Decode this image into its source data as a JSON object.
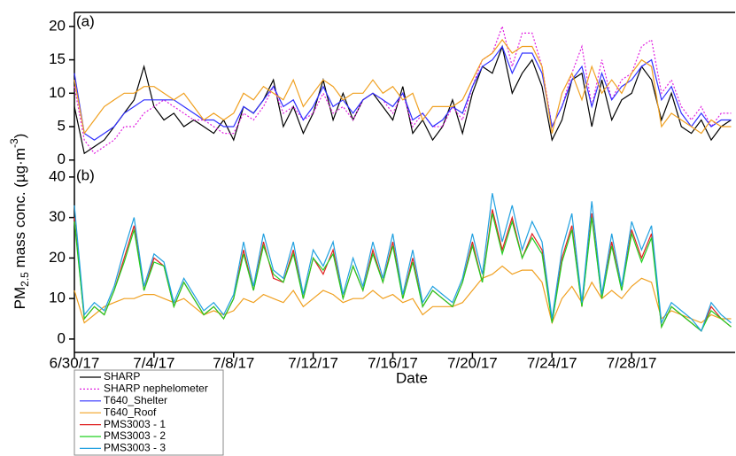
{
  "chart_data": {
    "type": "line",
    "xlabel": "Date",
    "ylabel": {
      "main": "PM",
      "sub": "2.5",
      "rest": " mass conc. (µg·m",
      "sup": "-3",
      "end": ")"
    },
    "x": [
      0,
      0.5,
      1,
      1.5,
      2,
      2.5,
      3,
      3.5,
      4,
      4.5,
      5,
      5.5,
      6,
      6.5,
      7,
      7.5,
      8,
      8.5,
      9,
      9.5,
      10,
      10.5,
      11,
      11.5,
      12,
      12.5,
      13,
      13.5,
      14,
      14.5,
      15,
      15.5,
      16,
      16.5,
      17,
      17.5,
      18,
      18.5,
      19,
      19.5,
      20,
      20.5,
      21,
      21.5,
      22,
      22.5,
      23,
      23.5,
      24,
      24.5,
      25,
      25.5,
      26,
      26.5,
      27,
      27.5,
      28,
      28.5,
      29,
      29.5,
      30,
      30.5,
      31,
      31.5,
      32,
      32.5,
      33
    ],
    "xlim": [
      0,
      33.2
    ],
    "xticks": [
      {
        "value": 0,
        "label": "6/30/17"
      },
      {
        "value": 4,
        "label": "7/4/17"
      },
      {
        "value": 8,
        "label": "7/8/17"
      },
      {
        "value": 12,
        "label": "7/12/17"
      },
      {
        "value": 16,
        "label": "7/16/17"
      },
      {
        "value": 20,
        "label": "7/20/17"
      },
      {
        "value": 24,
        "label": "7/24/17"
      },
      {
        "value": 28,
        "label": "7/28/17"
      }
    ],
    "panels": [
      {
        "label": "(a)",
        "ylim": [
          -0.3,
          22.1
        ],
        "yticks": [
          0,
          5,
          10,
          15,
          20
        ]
      },
      {
        "label": "(b)",
        "ylim": [
          -3.3,
          42.6
        ],
        "yticks": [
          0,
          10,
          20,
          30,
          40
        ]
      }
    ],
    "series": [
      {
        "name": "SHARP",
        "color": "#000000",
        "linestyle": "solid",
        "panels": [
          0
        ],
        "values": [
          8,
          1,
          2,
          3,
          5,
          7,
          9,
          14,
          8,
          6,
          7,
          5,
          6,
          5,
          4,
          6,
          3,
          8,
          7,
          9,
          12,
          5,
          8,
          4,
          7,
          12,
          6,
          10,
          6,
          9,
          10,
          8,
          6,
          11,
          4,
          6,
          3,
          5,
          9,
          4,
          10,
          14,
          13,
          17,
          10,
          13,
          15,
          11,
          3,
          6,
          12,
          13,
          5,
          12,
          6,
          9,
          10,
          14,
          12,
          6,
          10,
          5,
          4,
          6,
          3,
          5,
          6
        ]
      },
      {
        "name": "SHARP nephelometer",
        "color": "#e020e0",
        "linestyle": "dotted",
        "panels": [
          0
        ],
        "values": [
          11,
          3,
          1,
          2,
          3,
          5,
          5,
          7,
          8,
          9,
          8,
          7,
          6,
          6,
          5,
          4,
          4,
          7,
          6,
          8,
          11,
          7,
          8,
          6,
          7,
          10,
          7,
          8,
          6,
          9,
          10,
          9,
          7,
          10,
          5,
          7,
          5,
          5,
          8,
          6,
          11,
          15,
          16,
          20,
          14,
          19,
          19,
          14,
          5,
          8,
          13,
          17,
          8,
          15,
          9,
          12,
          13,
          17,
          18,
          10,
          12,
          8,
          6,
          8,
          5,
          7,
          7
        ]
      },
      {
        "name": "T640_Shelter",
        "color": "#3030ff",
        "linestyle": "solid",
        "panels": [
          0
        ],
        "values": [
          13,
          4,
          3,
          4,
          5,
          7,
          8,
          9,
          9,
          9,
          9,
          8,
          7,
          6,
          6,
          5,
          5,
          8,
          7,
          9,
          11,
          8,
          9,
          6,
          8,
          11,
          8,
          9,
          7,
          9,
          10,
          9,
          8,
          10,
          6,
          7,
          5,
          6,
          8,
          7,
          11,
          14,
          15,
          17,
          13,
          16,
          16,
          13,
          5,
          8,
          12,
          14,
          8,
          13,
          9,
          11,
          12,
          14,
          15,
          9,
          11,
          7,
          5,
          7,
          5,
          6,
          6
        ]
      },
      {
        "name": "T640_Roof",
        "color": "#f0a020",
        "linestyle": "solid",
        "panels": [
          0,
          1
        ],
        "values": [
          12,
          4,
          6,
          8,
          9,
          10,
          10,
          11,
          11,
          10,
          9,
          10,
          8,
          6,
          7,
          6,
          7,
          10,
          9,
          11,
          10,
          9,
          12,
          8,
          10,
          12,
          11,
          9,
          10,
          10,
          12,
          10,
          11,
          9,
          10,
          6,
          8,
          8,
          8,
          9,
          12,
          15,
          16,
          18,
          16,
          17,
          17,
          14,
          4,
          10,
          13,
          9,
          14,
          10,
          12,
          10,
          13,
          15,
          14,
          5,
          7,
          6,
          5,
          4,
          6,
          5,
          5
        ]
      },
      {
        "name": "PMS3003 - 1",
        "color": "#e02020",
        "linestyle": "solid",
        "panels": [
          1
        ],
        "values": [
          30,
          5,
          8,
          6,
          12,
          20,
          28,
          12,
          20,
          18,
          8,
          14,
          10,
          6,
          8,
          5,
          10,
          22,
          12,
          24,
          15,
          14,
          22,
          10,
          20,
          16,
          22,
          10,
          18,
          12,
          22,
          14,
          24,
          10,
          20,
          8,
          12,
          10,
          8,
          14,
          24,
          14,
          32,
          22,
          30,
          20,
          26,
          22,
          4,
          20,
          28,
          8,
          31,
          10,
          24,
          12,
          27,
          20,
          26,
          3,
          8,
          6,
          4,
          2,
          8,
          5,
          3
        ]
      },
      {
        "name": "PMS3003 - 2",
        "color": "#20d020",
        "linestyle": "solid",
        "panels": [
          1
        ],
        "values": [
          29,
          5,
          8,
          6,
          12,
          19,
          27,
          12,
          19,
          18,
          8,
          14,
          10,
          6,
          8,
          5,
          10,
          21,
          12,
          23,
          16,
          14,
          21,
          10,
          20,
          17,
          21,
          10,
          18,
          12,
          21,
          14,
          23,
          10,
          19,
          8,
          12,
          10,
          8,
          14,
          23,
          14,
          31,
          21,
          29,
          20,
          25,
          21,
          4,
          19,
          27,
          8,
          30,
          10,
          23,
          12,
          26,
          19,
          25,
          3,
          8,
          6,
          4,
          2,
          7,
          5,
          3
        ]
      },
      {
        "name": "PMS3003 - 3",
        "color": "#20a0e0",
        "linestyle": "solid",
        "panels": [
          1
        ],
        "values": [
          33,
          6,
          9,
          7,
          13,
          22,
          30,
          13,
          21,
          19,
          9,
          15,
          11,
          7,
          9,
          6,
          11,
          24,
          13,
          26,
          17,
          15,
          24,
          11,
          22,
          18,
          24,
          11,
          20,
          13,
          24,
          15,
          26,
          11,
          22,
          9,
          13,
          11,
          9,
          15,
          26,
          16,
          36,
          24,
          33,
          22,
          29,
          24,
          5,
          22,
          31,
          9,
          34,
          11,
          26,
          13,
          29,
          22,
          28,
          4,
          9,
          7,
          5,
          2,
          9,
          6,
          4
        ]
      }
    ]
  }
}
